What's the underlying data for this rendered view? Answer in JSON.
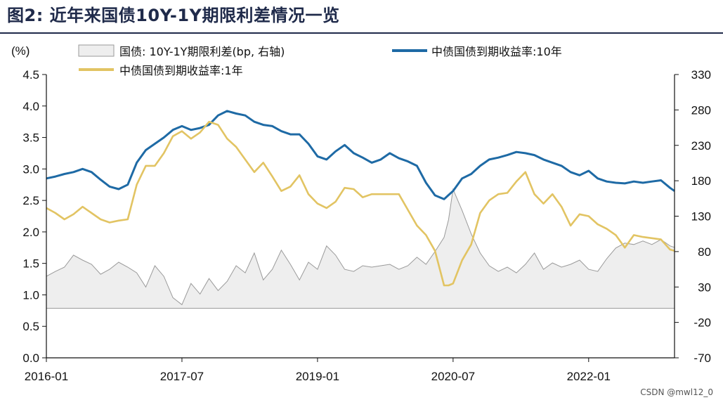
{
  "title": "图2:  近年来国债10Y-1Y期限利差情况一览",
  "watermark": "CSDN @mwl12_0",
  "chart_data": {
    "type": "line",
    "title": "图2:  近年来国债10Y-1Y期限利差情况一览",
    "ylabel_left": "(%)",
    "ylim_left": [
      0.0,
      4.5
    ],
    "yticks_left": [
      "0.0",
      "0.5",
      "1.0",
      "1.5",
      "2.0",
      "2.5",
      "3.0",
      "3.5",
      "4.0",
      "4.5"
    ],
    "ylim_right": [
      -70,
      330
    ],
    "yticks_right": [
      "-70",
      "-20",
      "30",
      "80",
      "130",
      "180",
      "230",
      "280",
      "330"
    ],
    "xticks": [
      "2016-01",
      "2017-07",
      "2019-01",
      "2020-07",
      "2022-01"
    ],
    "xrange": [
      2016.0,
      2022.95
    ],
    "grid": false,
    "legend_position": "top",
    "series": [
      {
        "name": "国债:  10Y-1Y期限利差(bp, 右轴)",
        "axis": "right",
        "style": "area",
        "color": "#9a9a9a",
        "fill": "#eeeeee",
        "x": [
          2016.0,
          2016.1,
          2016.2,
          2016.3,
          2016.4,
          2016.5,
          2016.6,
          2016.7,
          2016.8,
          2016.9,
          2017.0,
          2017.1,
          2017.2,
          2017.3,
          2017.4,
          2017.5,
          2017.6,
          2017.7,
          2017.8,
          2017.9,
          2018.0,
          2018.1,
          2018.2,
          2018.3,
          2018.4,
          2018.5,
          2018.6,
          2018.7,
          2018.8,
          2018.9,
          2019.0,
          2019.1,
          2019.2,
          2019.3,
          2019.4,
          2019.5,
          2019.6,
          2019.7,
          2019.8,
          2019.9,
          2020.0,
          2020.1,
          2020.2,
          2020.3,
          2020.4,
          2020.45,
          2020.5,
          2020.6,
          2020.7,
          2020.8,
          2020.9,
          2021.0,
          2021.1,
          2021.2,
          2021.3,
          2021.4,
          2021.5,
          2021.6,
          2021.7,
          2021.8,
          2021.9,
          2022.0,
          2022.1,
          2022.2,
          2022.3,
          2022.4,
          2022.5,
          2022.6,
          2022.7,
          2022.8,
          2022.9,
          2022.95
        ],
        "values": [
          45,
          52,
          58,
          75,
          68,
          62,
          48,
          55,
          65,
          58,
          50,
          30,
          60,
          45,
          15,
          5,
          35,
          20,
          42,
          25,
          38,
          60,
          50,
          78,
          40,
          55,
          82,
          62,
          40,
          65,
          55,
          88,
          75,
          55,
          52,
          60,
          58,
          60,
          62,
          55,
          60,
          72,
          62,
          80,
          100,
          125,
          168,
          138,
          105,
          78,
          60,
          52,
          58,
          50,
          62,
          78,
          55,
          64,
          58,
          62,
          68,
          55,
          52,
          70,
          85,
          92,
          90,
          95,
          90,
          97,
          88,
          86
        ]
      },
      {
        "name": "中债国债到期收益率:10年",
        "axis": "left",
        "style": "line",
        "color": "#1e6aa5",
        "x": [
          2016.0,
          2016.1,
          2016.2,
          2016.3,
          2016.4,
          2016.5,
          2016.6,
          2016.7,
          2016.8,
          2016.9,
          2017.0,
          2017.1,
          2017.2,
          2017.3,
          2017.4,
          2017.5,
          2017.6,
          2017.7,
          2017.8,
          2017.9,
          2018.0,
          2018.1,
          2018.2,
          2018.3,
          2018.4,
          2018.5,
          2018.6,
          2018.7,
          2018.8,
          2018.9,
          2019.0,
          2019.1,
          2019.2,
          2019.3,
          2019.4,
          2019.5,
          2019.6,
          2019.7,
          2019.8,
          2019.9,
          2020.0,
          2020.1,
          2020.2,
          2020.3,
          2020.4,
          2020.5,
          2020.6,
          2020.7,
          2020.8,
          2020.9,
          2021.0,
          2021.1,
          2021.2,
          2021.3,
          2021.4,
          2021.5,
          2021.6,
          2021.7,
          2021.8,
          2021.9,
          2022.0,
          2022.1,
          2022.2,
          2022.3,
          2022.4,
          2022.5,
          2022.6,
          2022.7,
          2022.8,
          2022.9,
          2022.95
        ],
        "values": [
          2.85,
          2.88,
          2.92,
          2.95,
          3.0,
          2.95,
          2.83,
          2.72,
          2.68,
          2.75,
          3.1,
          3.3,
          3.4,
          3.5,
          3.62,
          3.68,
          3.62,
          3.65,
          3.7,
          3.85,
          3.92,
          3.88,
          3.85,
          3.75,
          3.7,
          3.68,
          3.6,
          3.55,
          3.55,
          3.4,
          3.2,
          3.15,
          3.28,
          3.38,
          3.25,
          3.18,
          3.1,
          3.15,
          3.25,
          3.17,
          3.12,
          3.05,
          2.78,
          2.58,
          2.52,
          2.65,
          2.85,
          2.92,
          3.05,
          3.15,
          3.18,
          3.22,
          3.27,
          3.25,
          3.22,
          3.15,
          3.1,
          3.05,
          2.95,
          2.9,
          2.97,
          2.85,
          2.8,
          2.78,
          2.77,
          2.8,
          2.78,
          2.8,
          2.82,
          2.7,
          2.65
        ]
      },
      {
        "name": "中债国债到期收益率:1年",
        "axis": "left",
        "style": "line",
        "color": "#e2c463",
        "x": [
          2016.0,
          2016.1,
          2016.2,
          2016.3,
          2016.4,
          2016.5,
          2016.6,
          2016.7,
          2016.8,
          2016.9,
          2017.0,
          2017.1,
          2017.2,
          2017.3,
          2017.4,
          2017.5,
          2017.6,
          2017.7,
          2017.8,
          2017.9,
          2018.0,
          2018.1,
          2018.2,
          2018.3,
          2018.4,
          2018.5,
          2018.6,
          2018.7,
          2018.8,
          2018.9,
          2019.0,
          2019.1,
          2019.2,
          2019.3,
          2019.4,
          2019.5,
          2019.6,
          2019.7,
          2019.8,
          2019.9,
          2020.0,
          2020.1,
          2020.2,
          2020.3,
          2020.4,
          2020.45,
          2020.5,
          2020.6,
          2020.7,
          2020.8,
          2020.9,
          2021.0,
          2021.1,
          2021.2,
          2021.3,
          2021.4,
          2021.5,
          2021.6,
          2021.7,
          2021.8,
          2021.9,
          2022.0,
          2022.1,
          2022.2,
          2022.3,
          2022.4,
          2022.5,
          2022.6,
          2022.7,
          2022.8,
          2022.9,
          2022.95
        ],
        "values": [
          2.38,
          2.3,
          2.2,
          2.28,
          2.4,
          2.3,
          2.2,
          2.15,
          2.18,
          2.2,
          2.75,
          3.05,
          3.05,
          3.25,
          3.52,
          3.6,
          3.48,
          3.58,
          3.75,
          3.7,
          3.48,
          3.35,
          3.15,
          2.95,
          3.1,
          2.88,
          2.65,
          2.72,
          2.9,
          2.6,
          2.45,
          2.38,
          2.48,
          2.7,
          2.68,
          2.55,
          2.6,
          2.6,
          2.6,
          2.6,
          2.35,
          2.1,
          1.95,
          1.7,
          1.15,
          1.15,
          1.18,
          1.55,
          1.8,
          2.3,
          2.5,
          2.6,
          2.62,
          2.8,
          2.95,
          2.6,
          2.45,
          2.6,
          2.4,
          2.1,
          2.28,
          2.25,
          2.12,
          2.05,
          1.95,
          1.75,
          1.95,
          1.92,
          1.9,
          1.88,
          1.72,
          1.7
        ]
      }
    ]
  }
}
